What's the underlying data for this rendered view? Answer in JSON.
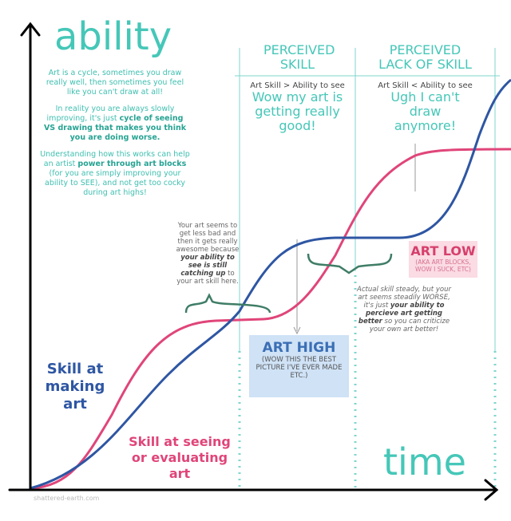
{
  "title": "ability",
  "intro": [
    {
      "runs": [
        {
          "text": "Art is a cycle, sometimes you draw really well, then sometimes you feel like you can't draw at all!",
          "style": "plain"
        }
      ]
    },
    {
      "runs": [
        {
          "text": "In reality you are always slowly improving, it's just ",
          "style": "plain"
        },
        {
          "text": "cycle of seeing VS drawing that makes you think you are doing worse.",
          "style": "bold"
        }
      ]
    },
    {
      "runs": [
        {
          "text": "Understanding how this works can help an artist ",
          "style": "plain"
        },
        {
          "text": "power through art blocks",
          "style": "bold"
        },
        {
          "text": " (for you are simply improving your ability to SEE), and not get too cocky during art highs!",
          "style": "plain"
        }
      ]
    }
  ],
  "columns": [
    {
      "heading": "PERCEIVED SKILL",
      "rule": "Art Skill > Ability to see",
      "thought": "Wow my art is getting really good!"
    },
    {
      "heading": "PERCEIVED LACK OF SKILL",
      "rule": "Art Skill < Ability to see",
      "thought": "Ugh I can't draw anymore!"
    }
  ],
  "notes": [
    {
      "runs": [
        {
          "text": "Your art seems to get less bad and then it gets really awesome because ",
          "style": "plain"
        },
        {
          "text": "your ability to see is still catching up",
          "style": "bold-italic"
        },
        {
          "text": " to your art skill here.",
          "style": "plain"
        }
      ]
    },
    {
      "runs": [
        {
          "text": "Actual skill steady, but your art seems steadily WORSE, it's just ",
          "style": "italic"
        },
        {
          "text": "your ability to percieve art getting better",
          "style": "bold-italic"
        },
        {
          "text": " so you can criticize your own art better!",
          "style": "italic"
        }
      ]
    }
  ],
  "callouts": [
    {
      "title": "ART HIGH",
      "subtitle": "(WOW THIS THE BEST PICTURE I'VE EVER MADE ETC.)"
    },
    {
      "title": "ART LOW",
      "subtitle": "(AKA ART BLOCKS, WOW I SUCK, ETC)"
    }
  ],
  "curve_labels": [
    "Skill at making art",
    "Skill at seeing or evaluating art"
  ],
  "axis_label": "time",
  "watermark": "shattered-earth.com"
}
